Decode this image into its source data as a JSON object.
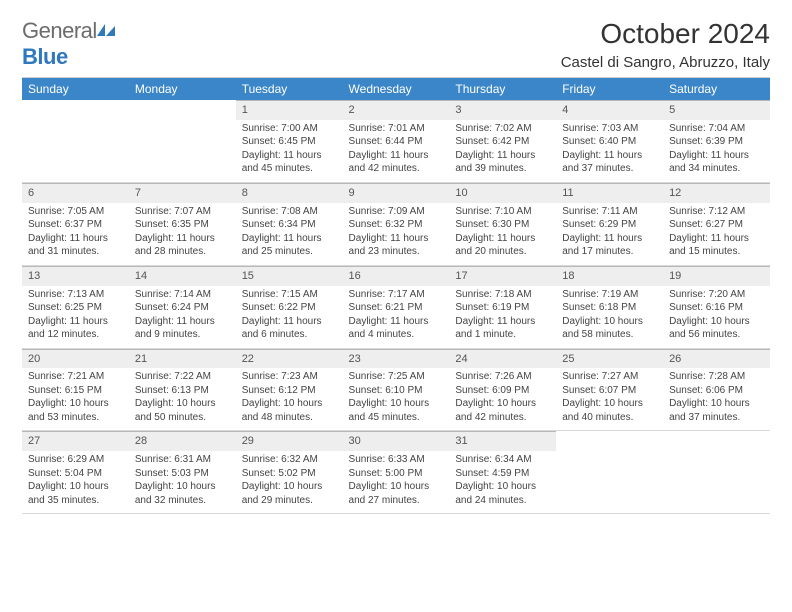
{
  "logo": {
    "word1": "General",
    "word2": "Blue"
  },
  "header": {
    "title": "October 2024",
    "subtitle": "Castel di Sangro, Abruzzo, Italy"
  },
  "colors": {
    "header_bg": "#3a86c8",
    "header_text": "#ffffff",
    "daynum_bg": "#eeeeee",
    "border": "#b8b8b8",
    "text": "#444444"
  },
  "calendar": {
    "day_headers": [
      "Sunday",
      "Monday",
      "Tuesday",
      "Wednesday",
      "Thursday",
      "Friday",
      "Saturday"
    ],
    "weeks": [
      [
        null,
        null,
        {
          "n": "1",
          "sunrise": "7:00 AM",
          "sunset": "6:45 PM",
          "day_h": "11",
          "day_m": "45"
        },
        {
          "n": "2",
          "sunrise": "7:01 AM",
          "sunset": "6:44 PM",
          "day_h": "11",
          "day_m": "42"
        },
        {
          "n": "3",
          "sunrise": "7:02 AM",
          "sunset": "6:42 PM",
          "day_h": "11",
          "day_m": "39"
        },
        {
          "n": "4",
          "sunrise": "7:03 AM",
          "sunset": "6:40 PM",
          "day_h": "11",
          "day_m": "37"
        },
        {
          "n": "5",
          "sunrise": "7:04 AM",
          "sunset": "6:39 PM",
          "day_h": "11",
          "day_m": "34"
        }
      ],
      [
        {
          "n": "6",
          "sunrise": "7:05 AM",
          "sunset": "6:37 PM",
          "day_h": "11",
          "day_m": "31"
        },
        {
          "n": "7",
          "sunrise": "7:07 AM",
          "sunset": "6:35 PM",
          "day_h": "11",
          "day_m": "28"
        },
        {
          "n": "8",
          "sunrise": "7:08 AM",
          "sunset": "6:34 PM",
          "day_h": "11",
          "day_m": "25"
        },
        {
          "n": "9",
          "sunrise": "7:09 AM",
          "sunset": "6:32 PM",
          "day_h": "11",
          "day_m": "23"
        },
        {
          "n": "10",
          "sunrise": "7:10 AM",
          "sunset": "6:30 PM",
          "day_h": "11",
          "day_m": "20"
        },
        {
          "n": "11",
          "sunrise": "7:11 AM",
          "sunset": "6:29 PM",
          "day_h": "11",
          "day_m": "17"
        },
        {
          "n": "12",
          "sunrise": "7:12 AM",
          "sunset": "6:27 PM",
          "day_h": "11",
          "day_m": "15"
        }
      ],
      [
        {
          "n": "13",
          "sunrise": "7:13 AM",
          "sunset": "6:25 PM",
          "day_h": "11",
          "day_m": "12"
        },
        {
          "n": "14",
          "sunrise": "7:14 AM",
          "sunset": "6:24 PM",
          "day_h": "11",
          "day_m": "9"
        },
        {
          "n": "15",
          "sunrise": "7:15 AM",
          "sunset": "6:22 PM",
          "day_h": "11",
          "day_m": "6"
        },
        {
          "n": "16",
          "sunrise": "7:17 AM",
          "sunset": "6:21 PM",
          "day_h": "11",
          "day_m": "4"
        },
        {
          "n": "17",
          "sunrise": "7:18 AM",
          "sunset": "6:19 PM",
          "day_h": "11",
          "day_m": "1",
          "singular": true
        },
        {
          "n": "18",
          "sunrise": "7:19 AM",
          "sunset": "6:18 PM",
          "day_h": "10",
          "day_m": "58"
        },
        {
          "n": "19",
          "sunrise": "7:20 AM",
          "sunset": "6:16 PM",
          "day_h": "10",
          "day_m": "56"
        }
      ],
      [
        {
          "n": "20",
          "sunrise": "7:21 AM",
          "sunset": "6:15 PM",
          "day_h": "10",
          "day_m": "53"
        },
        {
          "n": "21",
          "sunrise": "7:22 AM",
          "sunset": "6:13 PM",
          "day_h": "10",
          "day_m": "50"
        },
        {
          "n": "22",
          "sunrise": "7:23 AM",
          "sunset": "6:12 PM",
          "day_h": "10",
          "day_m": "48"
        },
        {
          "n": "23",
          "sunrise": "7:25 AM",
          "sunset": "6:10 PM",
          "day_h": "10",
          "day_m": "45"
        },
        {
          "n": "24",
          "sunrise": "7:26 AM",
          "sunset": "6:09 PM",
          "day_h": "10",
          "day_m": "42"
        },
        {
          "n": "25",
          "sunrise": "7:27 AM",
          "sunset": "6:07 PM",
          "day_h": "10",
          "day_m": "40"
        },
        {
          "n": "26",
          "sunrise": "7:28 AM",
          "sunset": "6:06 PM",
          "day_h": "10",
          "day_m": "37"
        }
      ],
      [
        {
          "n": "27",
          "sunrise": "6:29 AM",
          "sunset": "5:04 PM",
          "day_h": "10",
          "day_m": "35"
        },
        {
          "n": "28",
          "sunrise": "6:31 AM",
          "sunset": "5:03 PM",
          "day_h": "10",
          "day_m": "32"
        },
        {
          "n": "29",
          "sunrise": "6:32 AM",
          "sunset": "5:02 PM",
          "day_h": "10",
          "day_m": "29"
        },
        {
          "n": "30",
          "sunrise": "6:33 AM",
          "sunset": "5:00 PM",
          "day_h": "10",
          "day_m": "27"
        },
        {
          "n": "31",
          "sunrise": "6:34 AM",
          "sunset": "4:59 PM",
          "day_h": "10",
          "day_m": "24"
        },
        null,
        null
      ]
    ]
  },
  "labels": {
    "sunrise": "Sunrise:",
    "sunset": "Sunset:",
    "daylight": "Daylight:",
    "hours": "hours",
    "and": "and",
    "minutes": "minutes.",
    "minute": "minute."
  }
}
